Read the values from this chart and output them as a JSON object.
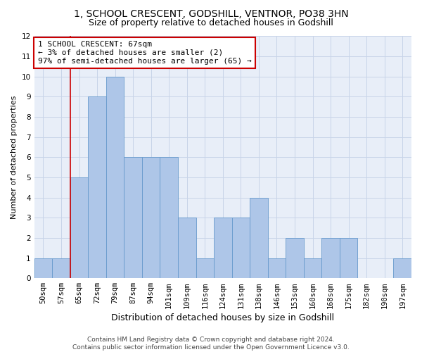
{
  "title_line1": "1, SCHOOL CRESCENT, GODSHILL, VENTNOR, PO38 3HN",
  "title_line2": "Size of property relative to detached houses in Godshill",
  "xlabel": "Distribution of detached houses by size in Godshill",
  "ylabel": "Number of detached properties",
  "categories": [
    "50sqm",
    "57sqm",
    "65sqm",
    "72sqm",
    "79sqm",
    "87sqm",
    "94sqm",
    "101sqm",
    "109sqm",
    "116sqm",
    "124sqm",
    "131sqm",
    "138sqm",
    "146sqm",
    "153sqm",
    "160sqm",
    "168sqm",
    "175sqm",
    "182sqm",
    "190sqm",
    "197sqm"
  ],
  "values": [
    1,
    1,
    5,
    9,
    10,
    6,
    6,
    6,
    3,
    1,
    3,
    3,
    4,
    1,
    2,
    1,
    2,
    2,
    0,
    0,
    1
  ],
  "bar_color": "#aec6e8",
  "bar_edge_color": "#6699cc",
  "vline_color": "#cc0000",
  "annotation_text": "1 SCHOOL CRESCENT: 67sqm\n← 3% of detached houses are smaller (2)\n97% of semi-detached houses are larger (65) →",
  "annotation_box_color": "#ffffff",
  "annotation_box_edge_color": "#cc0000",
  "ylim": [
    0,
    12
  ],
  "yticks": [
    0,
    1,
    2,
    3,
    4,
    5,
    6,
    7,
    8,
    9,
    10,
    11,
    12
  ],
  "grid_color": "#c8d4e8",
  "background_color": "#e8eef8",
  "footer_line1": "Contains HM Land Registry data © Crown copyright and database right 2024.",
  "footer_line2": "Contains public sector information licensed under the Open Government Licence v3.0.",
  "title_fontsize": 10,
  "subtitle_fontsize": 9,
  "xlabel_fontsize": 9,
  "ylabel_fontsize": 8,
  "tick_fontsize": 7.5,
  "annotation_fontsize": 8,
  "footer_fontsize": 6.5
}
